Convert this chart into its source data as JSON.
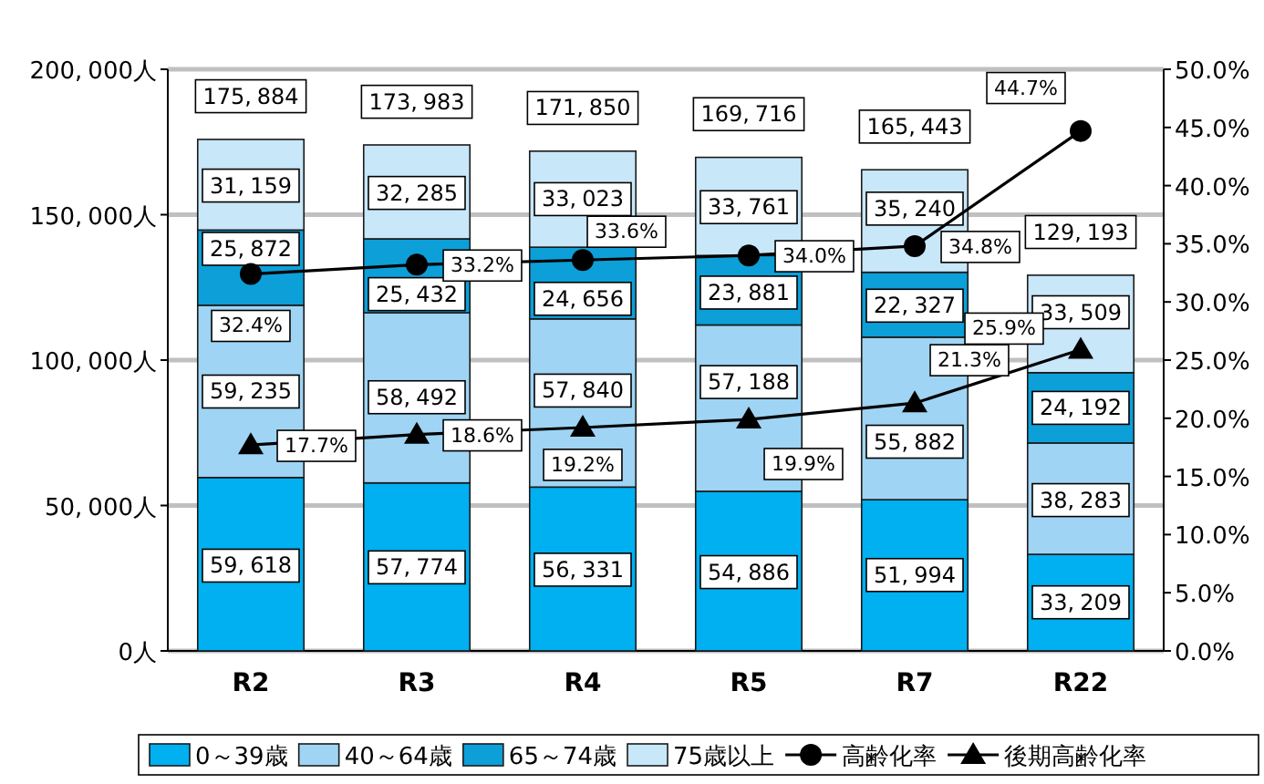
{
  "chart_data": {
    "type": "bar",
    "stacked": true,
    "categories": [
      "R2",
      "R3",
      "R4",
      "R5",
      "R7",
      "R22"
    ],
    "series": [
      {
        "name": "0～39歳",
        "color": "#00b0f0",
        "values": [
          59618,
          57774,
          56331,
          54886,
          51994,
          33209
        ],
        "value_labels": [
          "59,618",
          "57,774",
          "56,331",
          "54,886",
          "51,994",
          "33,209"
        ]
      },
      {
        "name": "40～64歳",
        "color": "#9fd4f4",
        "values": [
          59235,
          58492,
          57840,
          57188,
          55882,
          38283
        ],
        "value_labels": [
          "59,235",
          "58,492",
          "57,840",
          "57,188",
          "55,882",
          "38,283"
        ]
      },
      {
        "name": "65～74歳",
        "color": "#0d9fd8",
        "values": [
          25872,
          25432,
          24656,
          23881,
          22327,
          24192
        ],
        "value_labels": [
          "25,872",
          "25,432",
          "24,656",
          "23,881",
          "22,327",
          "24,192"
        ]
      },
      {
        "name": "75歳以上",
        "color": "#c8e7f9",
        "values": [
          31159,
          32285,
          33023,
          33761,
          35240,
          33509
        ],
        "value_labels": [
          "31,159",
          "32,285",
          "33,023",
          "33,761",
          "35,240",
          "33,509"
        ]
      },
      {
        "name": "高齢化率",
        "type": "line",
        "axis": "y2",
        "color": "#000000",
        "marker": "circle",
        "values": [
          32.4,
          33.2,
          33.6,
          34.0,
          34.8,
          44.7
        ],
        "value_labels": [
          "32.4%",
          "33.2%",
          "33.6%",
          "34.0%",
          "34.8%",
          "44.7%"
        ]
      },
      {
        "name": "後期高齢化率",
        "type": "line",
        "axis": "y2",
        "color": "#000000",
        "marker": "triangle",
        "values": [
          17.7,
          18.6,
          19.2,
          19.9,
          21.3,
          25.9
        ],
        "value_labels": [
          "17.7%",
          "18.6%",
          "19.2%",
          "19.9%",
          "21.3%",
          "25.9%"
        ]
      }
    ],
    "totals": [
      "175,884",
      "173,983",
      "171,850",
      "169,716",
      "165,443",
      "129,193"
    ],
    "ylim": [
      0,
      200000
    ],
    "yticks": [
      {
        "value": 0,
        "label": "0人"
      },
      {
        "value": 50000,
        "label": "50,000人"
      },
      {
        "value": 100000,
        "label": "100,000人"
      },
      {
        "value": 150000,
        "label": "150,000人"
      },
      {
        "value": 200000,
        "label": "200,000人"
      }
    ],
    "y2lim": [
      0,
      50
    ],
    "y2ticks": [
      {
        "value": 0,
        "label": "0.0%"
      },
      {
        "value": 5,
        "label": "5.0%"
      },
      {
        "value": 10,
        "label": "10.0%"
      },
      {
        "value": 15,
        "label": "15.0%"
      },
      {
        "value": 20,
        "label": "20.0%"
      },
      {
        "value": 25,
        "label": "25.0%"
      },
      {
        "value": 30,
        "label": "30.0%"
      },
      {
        "value": 35,
        "label": "35.0%"
      },
      {
        "value": 40,
        "label": "40.0%"
      },
      {
        "value": 45,
        "label": "45.0%"
      },
      {
        "value": 50,
        "label": "50.0%"
      }
    ],
    "grid": "y",
    "legend": "bottom"
  }
}
